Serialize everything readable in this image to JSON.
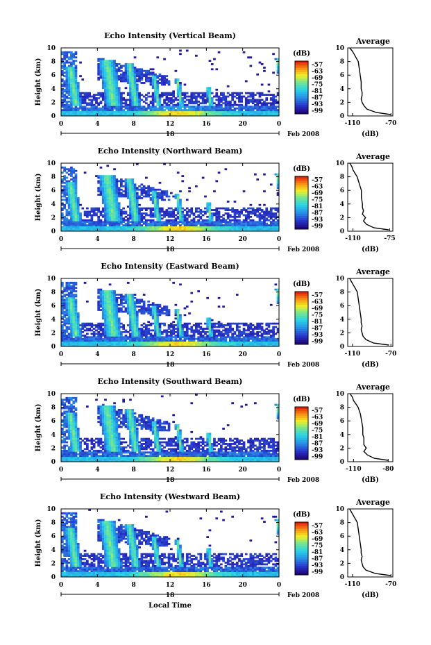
{
  "figure": {
    "date_label": "18",
    "month_label": "Feb 2008",
    "x_axis_title": "Local Time",
    "height_axis_title": "Height (km)",
    "colorbar_title": "(dB)",
    "profile_title": "Average",
    "profile_unit": "(dB)"
  },
  "chart_data": [
    {
      "type": "heatmap",
      "title": "Echo Intensity (Vertical Beam)",
      "xlabel": "",
      "ylabel": "Height (km)",
      "x_ticks": [
        "0",
        "4",
        "8",
        "12",
        "16",
        "20",
        "0"
      ],
      "y_ticks": [
        "0",
        "2",
        "4",
        "6",
        "8",
        "10"
      ],
      "xlim": [
        0,
        24
      ],
      "ylim": [
        0,
        10
      ],
      "colorbar": {
        "label": "(dB)",
        "ticks": [
          "-57",
          "-63",
          "-69",
          "-75",
          "-81",
          "-87",
          "-93",
          "-99"
        ]
      },
      "profile": {
        "title": "Average",
        "xlabel": "(dB)",
        "x_ticks": [
          "-110",
          "-70"
        ],
        "xlim": [
          -115,
          -68
        ],
        "heights": [
          0.2,
          0.5,
          1.0,
          1.5,
          2.0,
          2.5,
          3.0,
          3.5,
          4.0,
          5.0,
          6.0,
          7.0,
          8.0,
          8.5,
          9.0,
          9.5,
          10.0
        ],
        "values": [
          -70,
          -85,
          -95,
          -98,
          -100,
          -101,
          -100,
          -100,
          -101,
          -101,
          -102,
          -103,
          -104,
          -106,
          -108,
          -110,
          -113
        ]
      }
    },
    {
      "type": "heatmap",
      "title": "Echo Intensity (Northward Beam)",
      "xlabel": "",
      "ylabel": "Height (km)",
      "x_ticks": [
        "0",
        "4",
        "8",
        "12",
        "16",
        "20",
        "0"
      ],
      "y_ticks": [
        "0",
        "2",
        "4",
        "6",
        "8",
        "10"
      ],
      "xlim": [
        0,
        24
      ],
      "ylim": [
        0,
        10
      ],
      "colorbar": {
        "label": "(dB)",
        "ticks": [
          "-57",
          "-63",
          "-69",
          "-75",
          "-81",
          "-87",
          "-93",
          "-99"
        ]
      },
      "profile": {
        "title": "Average",
        "xlabel": "(dB)",
        "x_ticks": [
          "-110",
          "-75"
        ],
        "xlim": [
          -115,
          -72
        ],
        "heights": [
          0.2,
          0.5,
          1.0,
          1.5,
          2.0,
          2.5,
          3.0,
          3.5,
          4.0,
          5.0,
          6.0,
          7.0,
          8.0,
          8.5,
          9.0,
          9.5,
          10.0
        ],
        "values": [
          -76,
          -90,
          -97,
          -100,
          -98,
          -101,
          -100,
          -101,
          -101,
          -102,
          -102,
          -104,
          -106,
          -108,
          -110,
          -111,
          -113
        ]
      }
    },
    {
      "type": "heatmap",
      "title": "Echo Intensity (Eastward Beam)",
      "xlabel": "",
      "ylabel": "Height (km)",
      "x_ticks": [
        "0",
        "4",
        "8",
        "12",
        "16",
        "20",
        "0"
      ],
      "y_ticks": [
        "0",
        "2",
        "4",
        "6",
        "8",
        "10"
      ],
      "xlim": [
        0,
        24
      ],
      "ylim": [
        0,
        10
      ],
      "colorbar": {
        "label": "(dB)",
        "ticks": [
          "-57",
          "-63",
          "-69",
          "-75",
          "-81",
          "-87",
          "-93",
          "-99"
        ]
      },
      "profile": {
        "title": "Average",
        "xlabel": "(dB)",
        "x_ticks": [
          "-110",
          "-70"
        ],
        "xlim": [
          -115,
          -68
        ],
        "heights": [
          0.2,
          0.5,
          1.0,
          1.5,
          2.0,
          2.5,
          3.0,
          3.5,
          4.0,
          5.0,
          6.0,
          7.0,
          8.0,
          8.5,
          9.0,
          9.5,
          10.0
        ],
        "values": [
          -72,
          -88,
          -96,
          -99,
          -100,
          -101,
          -100,
          -101,
          -101,
          -102,
          -103,
          -104,
          -105,
          -107,
          -109,
          -111,
          -113
        ]
      }
    },
    {
      "type": "heatmap",
      "title": "Echo Intensity (Southward Beam)",
      "xlabel": "",
      "ylabel": "Height (km)",
      "x_ticks": [
        "0",
        "4",
        "8",
        "12",
        "16",
        "20",
        "0"
      ],
      "y_ticks": [
        "0",
        "2",
        "4",
        "6",
        "8",
        "10"
      ],
      "xlim": [
        0,
        24
      ],
      "ylim": [
        0,
        10
      ],
      "colorbar": {
        "label": "(dB)",
        "ticks": [
          "-57",
          "-63",
          "-69",
          "-75",
          "-81",
          "-87",
          "-93",
          "-99"
        ]
      },
      "profile": {
        "title": "Average",
        "xlabel": "(dB)",
        "x_ticks": [
          "-110",
          "-80"
        ],
        "xlim": [
          -115,
          -76
        ],
        "heights": [
          0.2,
          0.5,
          1.0,
          1.5,
          2.0,
          2.5,
          3.0,
          3.5,
          4.0,
          5.0,
          6.0,
          7.0,
          8.0,
          8.5,
          9.0,
          9.5,
          10.0
        ],
        "values": [
          -80,
          -92,
          -98,
          -101,
          -99,
          -101,
          -101,
          -101,
          -102,
          -102,
          -103,
          -104,
          -106,
          -108,
          -110,
          -111,
          -113
        ]
      }
    },
    {
      "type": "heatmap",
      "title": "Echo Intensity (Westward Beam)",
      "xlabel": "Local Time",
      "ylabel": "Height (km)",
      "x_ticks": [
        "0",
        "4",
        "8",
        "12",
        "16",
        "20",
        "0"
      ],
      "y_ticks": [
        "0",
        "2",
        "4",
        "6",
        "8",
        "10"
      ],
      "xlim": [
        0,
        24
      ],
      "ylim": [
        0,
        10
      ],
      "colorbar": {
        "label": "(dB)",
        "ticks": [
          "-57",
          "-63",
          "-69",
          "-75",
          "-81",
          "-87",
          "-93",
          "-99"
        ]
      },
      "profile": {
        "title": "Average",
        "xlabel": "(dB)",
        "x_ticks": [
          "-110",
          "-70"
        ],
        "xlim": [
          -115,
          -68
        ],
        "heights": [
          0.2,
          0.5,
          1.0,
          1.5,
          2.0,
          2.5,
          3.0,
          3.5,
          4.0,
          5.0,
          6.0,
          7.0,
          8.0,
          8.5,
          9.0,
          9.5,
          10.0
        ],
        "values": [
          -70,
          -86,
          -96,
          -99,
          -100,
          -101,
          -100,
          -101,
          -101,
          -102,
          -103,
          -104,
          -105,
          -107,
          -109,
          -111,
          -113
        ]
      }
    }
  ]
}
